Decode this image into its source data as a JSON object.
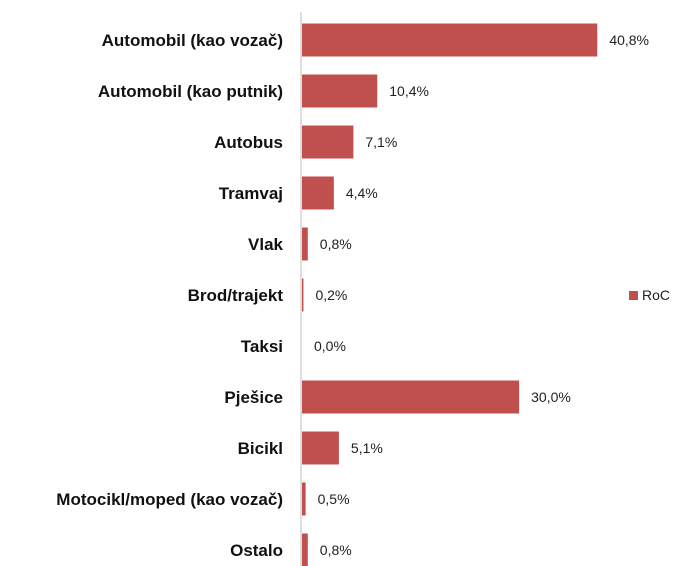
{
  "chart_data": {
    "type": "bar",
    "orientation": "horizontal",
    "categories": [
      "Automobil (kao vozač)",
      "Automobil (kao putnik)",
      "Autobus",
      "Tramvaj",
      "Vlak",
      "Brod/trajekt",
      "Taksi",
      "Pješice",
      "Bicikl",
      "Motocikl/moped (kao vozač)",
      "Ostalo"
    ],
    "series": [
      {
        "name": "RoC",
        "color": "#c0504d",
        "values": [
          40.8,
          10.4,
          7.1,
          4.4,
          0.8,
          0.2,
          0.0,
          30.0,
          5.1,
          0.5,
          0.8
        ],
        "value_labels": [
          "40,8%",
          "10,4%",
          "7,1%",
          "4,4%",
          "0,8%",
          "0,2%",
          "0,0%",
          "30,0%",
          "5,1%",
          "0,5%",
          "0,8%"
        ]
      }
    ],
    "unit": "%",
    "xlim": [
      0,
      42
    ],
    "grid": false,
    "legend": {
      "position": "right",
      "entries": [
        "RoC"
      ]
    }
  }
}
